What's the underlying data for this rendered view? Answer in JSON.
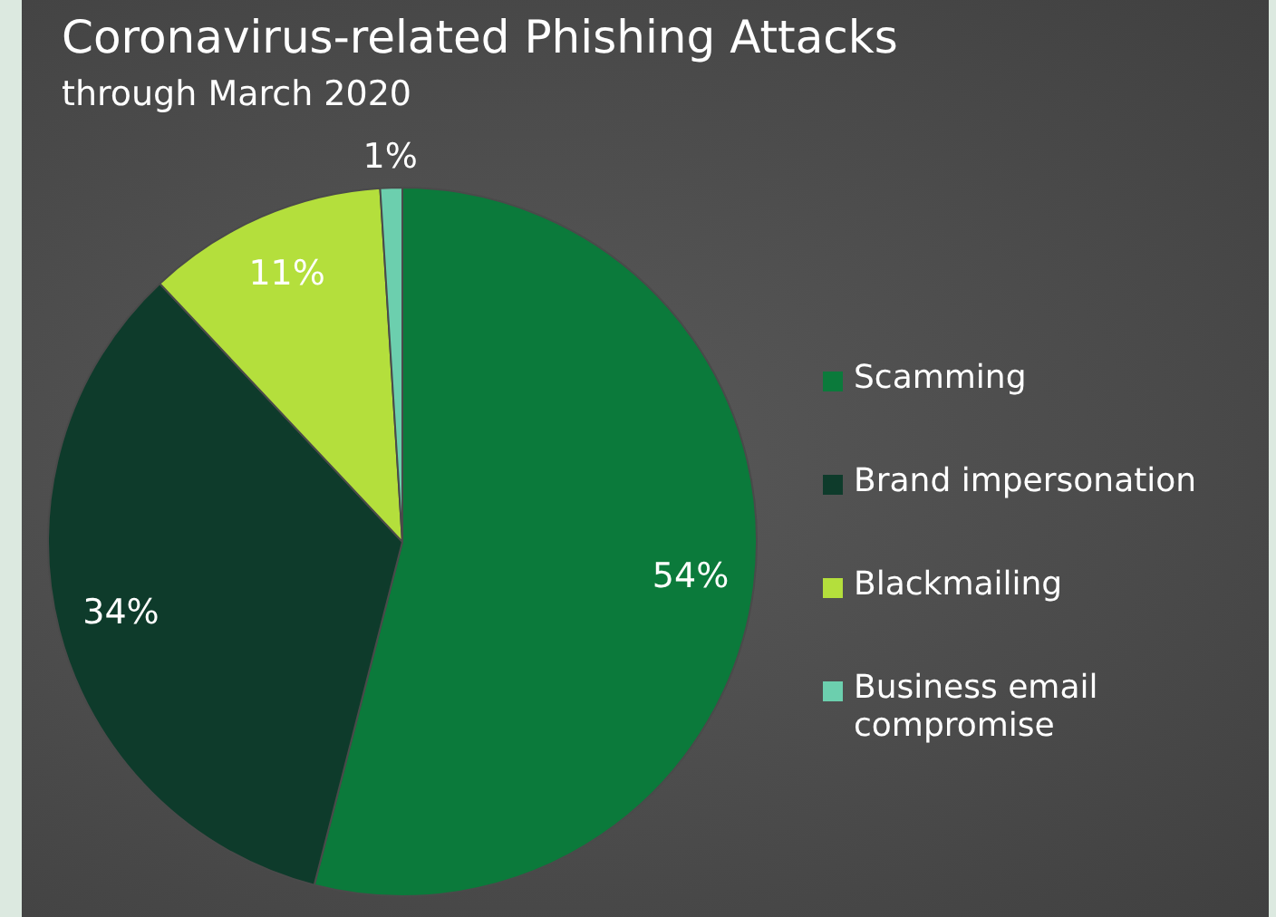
{
  "chart_data": {
    "type": "pie",
    "title": "Coronavirus-related Phishing Attacks",
    "subtitle": "through March 2020",
    "categories": [
      "Scamming",
      "Brand impersonation",
      "Blackmailing",
      "Business email compromise"
    ],
    "values": [
      54,
      34,
      11,
      1
    ],
    "colors": [
      "#0b7a3b",
      "#0e3b2b",
      "#b4df3c",
      "#6ccfae"
    ],
    "value_labels": [
      "54%",
      "34%",
      "11%",
      "1%"
    ],
    "legend": "right"
  }
}
